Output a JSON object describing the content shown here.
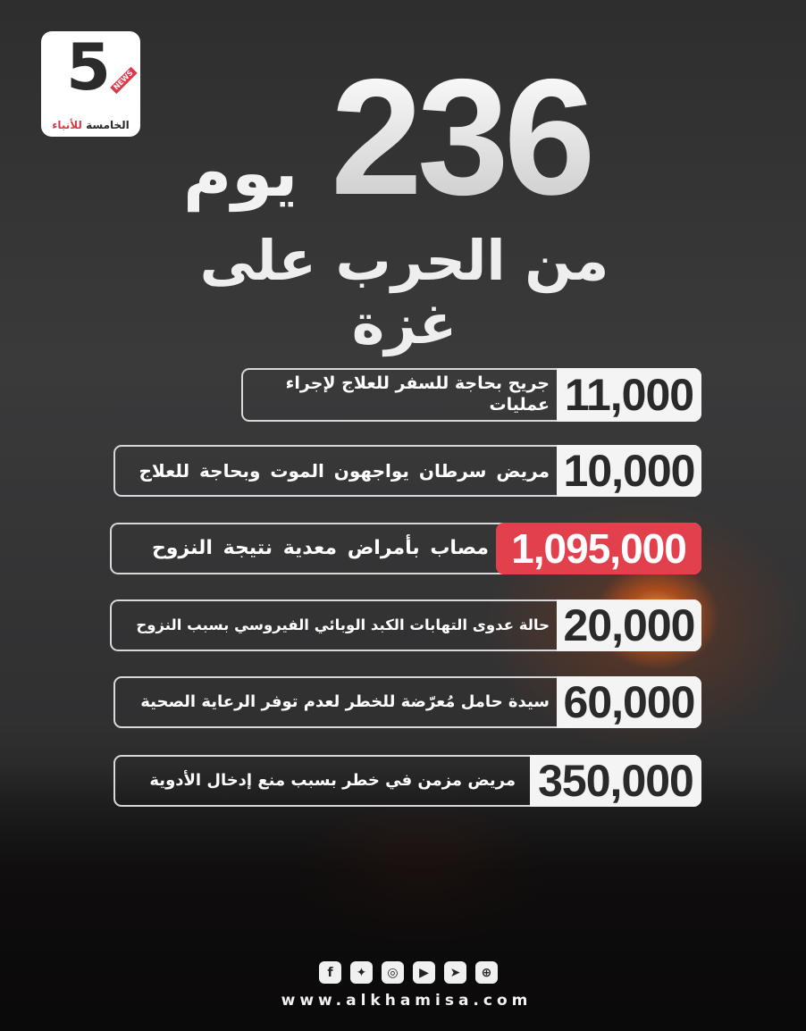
{
  "logo": {
    "numeral": "5",
    "badge": "NEWS",
    "name_part1": "الخامسة",
    "name_part2": "للأنباء"
  },
  "headline": {
    "days": "236",
    "days_word": "يوم",
    "subtitle": "من الحرب على غزة"
  },
  "accent_color": "#e3404e",
  "stats": [
    {
      "value": "11,000",
      "label": "جريح بحاجة للسفر للعلاج لإجراء عمليات",
      "highlight": false
    },
    {
      "value": "10,000",
      "label": "مريض سرطان يواجهون الموت وبحاجة للعلاج",
      "highlight": false
    },
    {
      "value": "1,095,000",
      "label": "مصاب بأمراض معدية نتيجة النزوح",
      "highlight": true
    },
    {
      "value": "20,000",
      "label": "حالة عدوى التهابات الكبد الوبائي الفيروسي بسبب النزوح",
      "highlight": false
    },
    {
      "value": "60,000",
      "label": "سيدة حامل مُعرّضة للخطر لعدم توفر الرعاية الصحية",
      "highlight": false
    },
    {
      "value": "350,000",
      "label": "مريض مزمن في خطر بسبب منع إدخال الأدوية",
      "highlight": false
    }
  ],
  "footer": {
    "social_icons": [
      "facebook-icon",
      "twitter-icon",
      "instagram-icon",
      "youtube-icon",
      "telegram-icon",
      "dribbble-icon"
    ],
    "website": "www.alkhamisa.com"
  }
}
